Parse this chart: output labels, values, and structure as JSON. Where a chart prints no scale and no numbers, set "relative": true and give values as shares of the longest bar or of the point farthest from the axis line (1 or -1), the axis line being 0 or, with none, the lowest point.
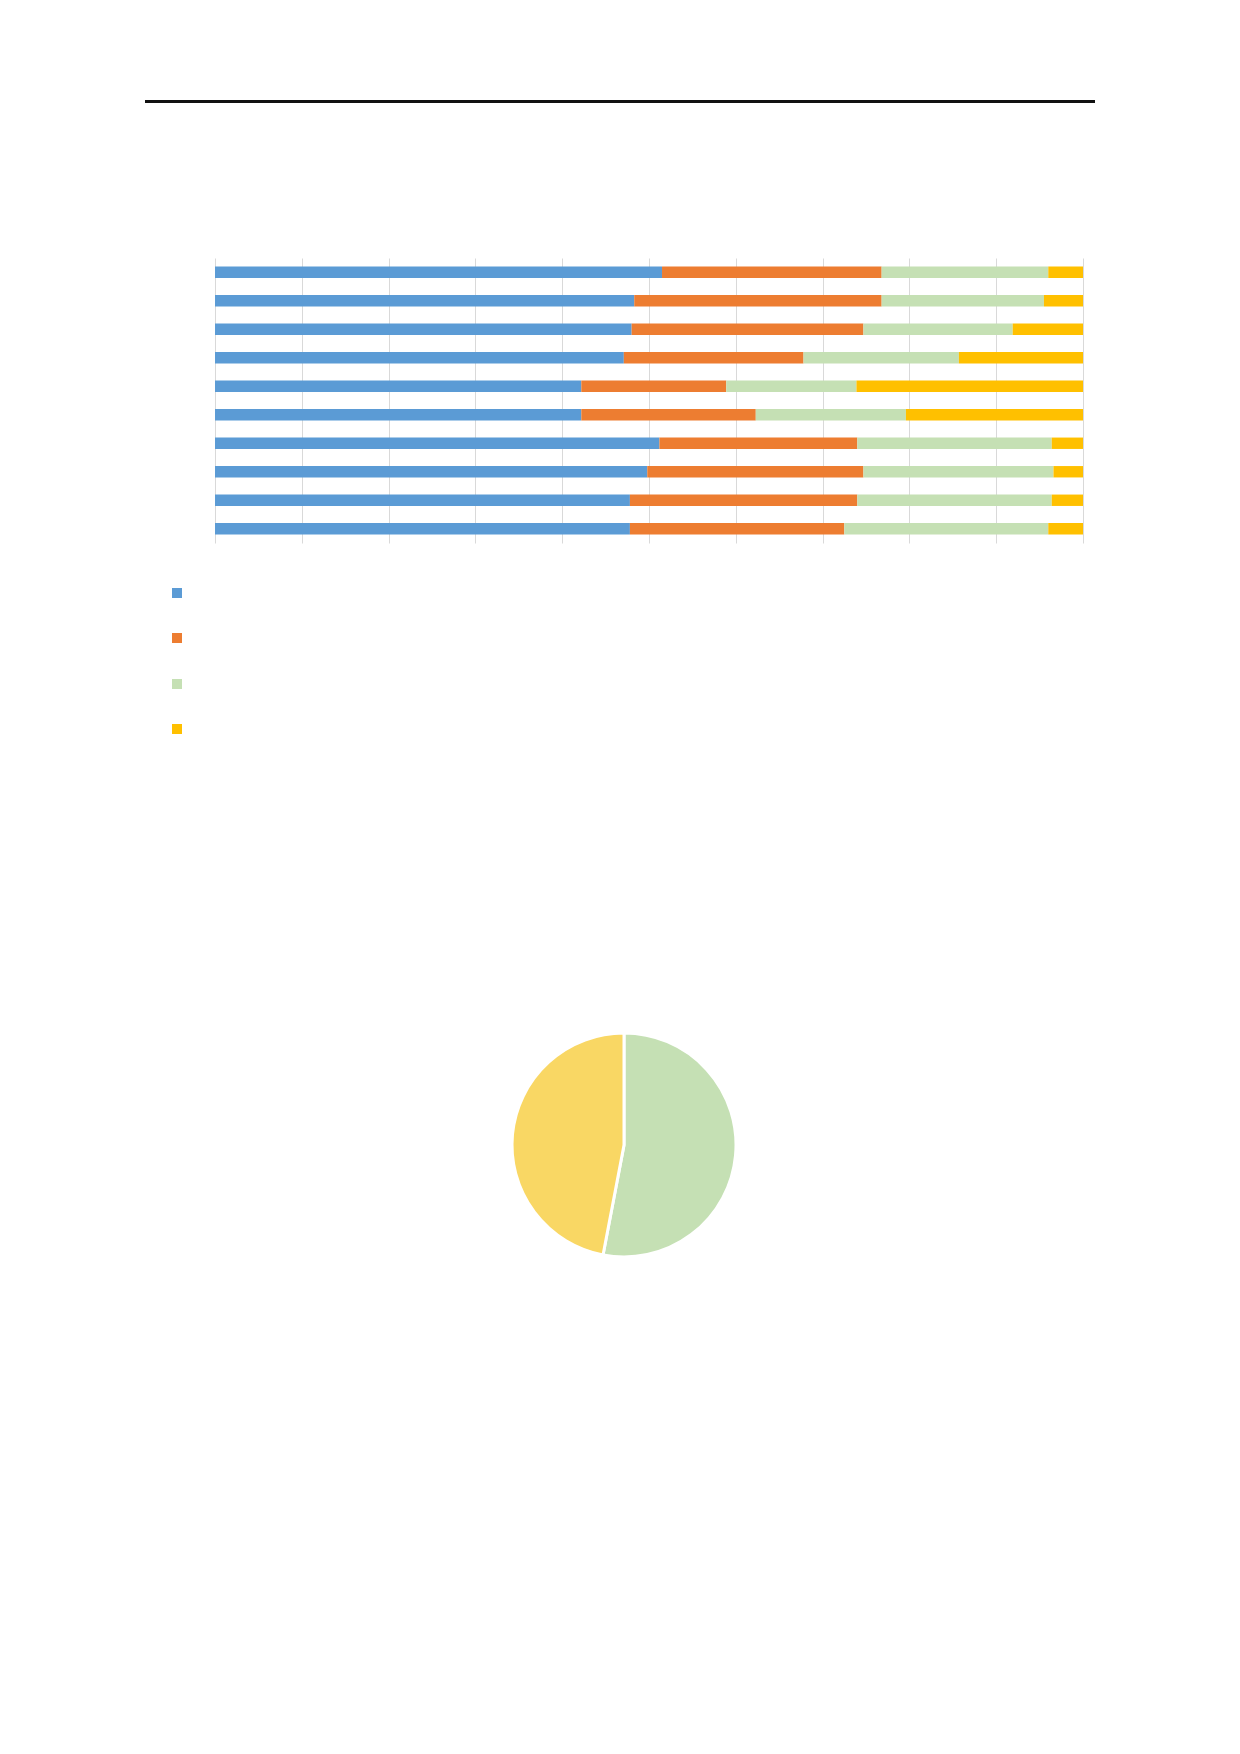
{
  "chart_data": [
    {
      "type": "bar",
      "orientation": "horizontal",
      "stacked": true,
      "relative": true,
      "grid": "x",
      "categories": [
        null,
        null,
        null,
        null,
        null,
        null,
        null,
        null,
        null,
        null
      ],
      "series": [
        {
          "color": "#5b9bd5",
          "values": [
            0.515,
            0.483,
            0.48,
            0.471,
            0.422,
            0.422,
            0.512,
            0.498,
            0.478,
            0.478
          ]
        },
        {
          "color": "#ed7d31",
          "values": [
            0.253,
            0.285,
            0.267,
            0.207,
            0.167,
            0.201,
            0.228,
            0.249,
            0.262,
            0.247
          ]
        },
        {
          "color": "#c5e0b4",
          "values": [
            0.192,
            0.187,
            0.172,
            0.179,
            0.15,
            0.173,
            0.224,
            0.219,
            0.224,
            0.235
          ]
        },
        {
          "color": "#ffc000",
          "values": [
            0.04,
            0.045,
            0.081,
            0.143,
            0.261,
            0.204,
            0.036,
            0.034,
            0.036,
            0.04
          ]
        }
      ]
    },
    {
      "type": "pie",
      "categories": [
        null,
        null
      ],
      "values": [
        53,
        47
      ],
      "colors": [
        "#c5e0b4",
        "#f9d764"
      ]
    }
  ]
}
